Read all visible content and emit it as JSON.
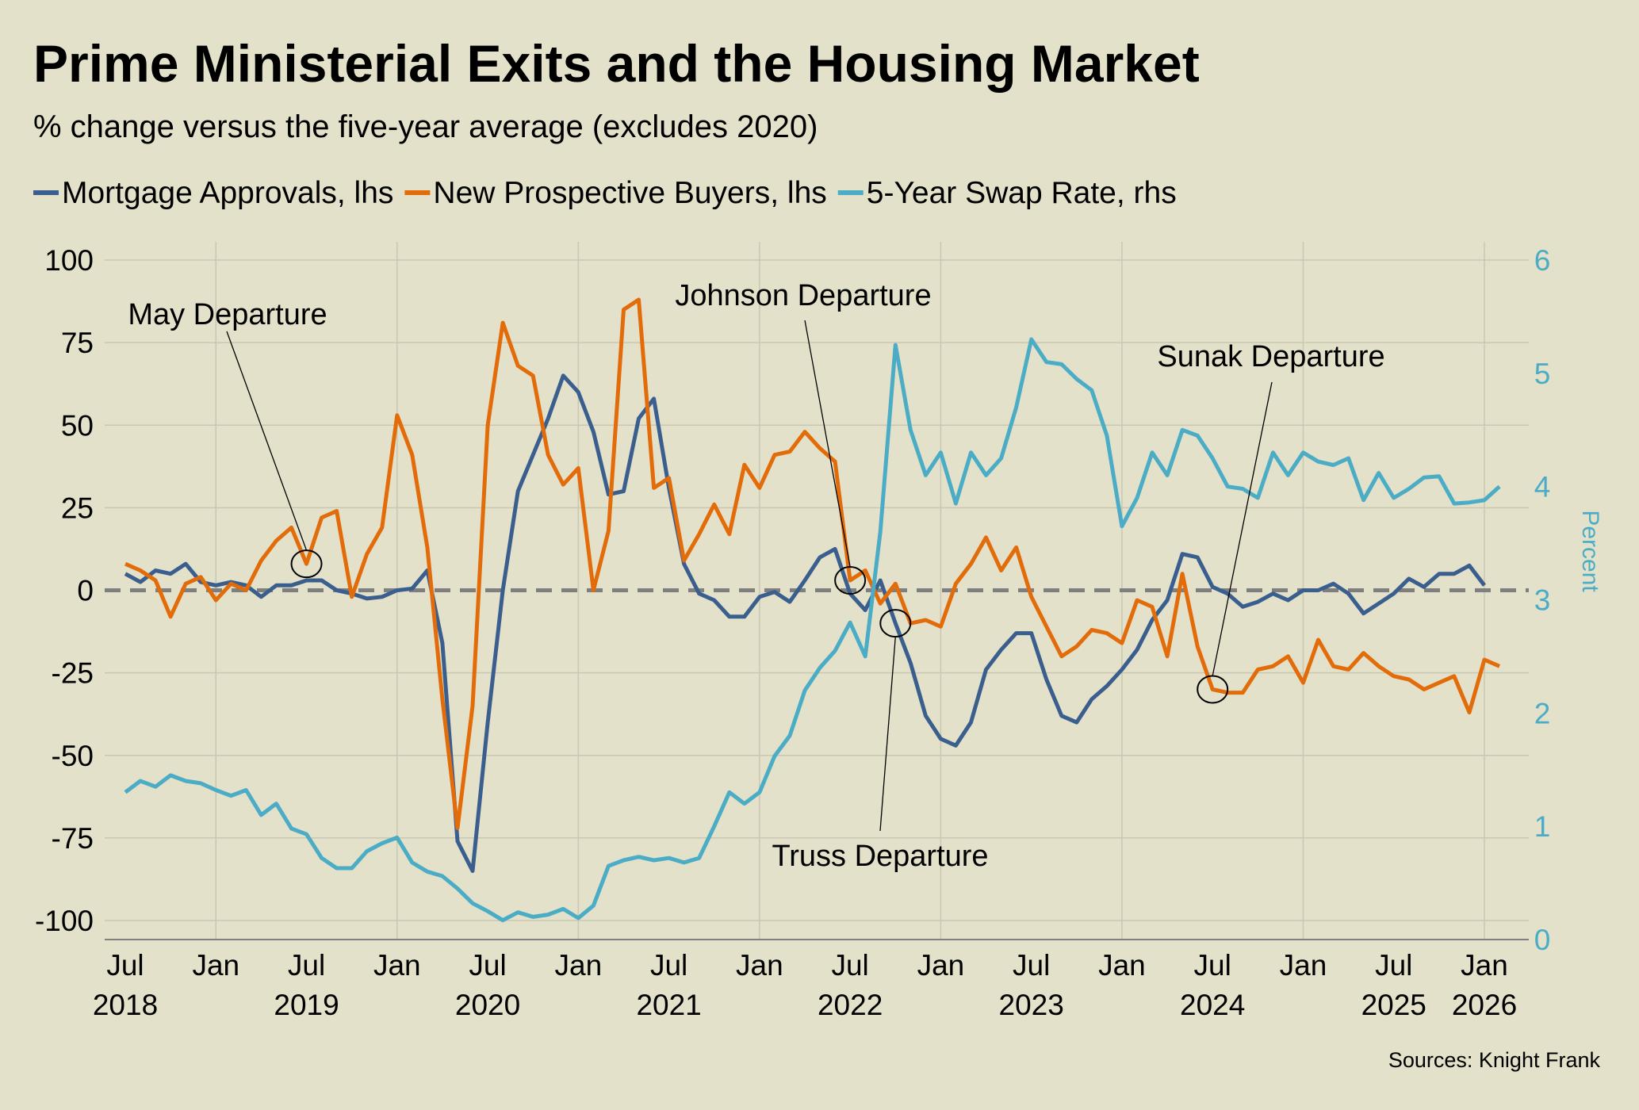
{
  "chart_data": {
    "type": "line",
    "title": "Prime Ministerial Exits and the Housing Market",
    "subtitle": "% change versus the five-year average (excludes 2020)",
    "y_left": {
      "range": [
        -100,
        100
      ],
      "ticks": [
        "100",
        "75",
        "50",
        "25",
        "0",
        "-25",
        "-50",
        "-75",
        "-100"
      ],
      "values": [
        100,
        75,
        50,
        25,
        0,
        -25,
        -50,
        -75,
        -100
      ]
    },
    "y_right": {
      "label": "Percent",
      "range": [
        0,
        6
      ],
      "ticks": [
        "6",
        "5",
        "4",
        "3",
        "2",
        "1",
        "0"
      ],
      "values": [
        6,
        5,
        4,
        3,
        2,
        1,
        0
      ]
    },
    "x_start": "2018-07",
    "x_ticks": [
      {
        "month": "2018-07",
        "line1": "Jul",
        "line2": "2018"
      },
      {
        "month": "2019-01",
        "line1": "Jan",
        "line2": ""
      },
      {
        "month": "2019-07",
        "line1": "Jul",
        "line2": "2019"
      },
      {
        "month": "2020-01",
        "line1": "Jan",
        "line2": ""
      },
      {
        "month": "2020-07",
        "line1": "Jul",
        "line2": "2020"
      },
      {
        "month": "2021-01",
        "line1": "Jan",
        "line2": ""
      },
      {
        "month": "2021-07",
        "line1": "Jul",
        "line2": "2021"
      },
      {
        "month": "2022-01",
        "line1": "Jan",
        "line2": ""
      },
      {
        "month": "2022-07",
        "line1": "Jul",
        "line2": "2022"
      },
      {
        "month": "2023-01",
        "line1": "Jan",
        "line2": ""
      },
      {
        "month": "2023-07",
        "line1": "Jul",
        "line2": "2023"
      },
      {
        "month": "2024-01",
        "line1": "Jan",
        "line2": ""
      },
      {
        "month": "2024-07",
        "line1": "Jul",
        "line2": "2024"
      },
      {
        "month": "2025-01",
        "line1": "Jan",
        "line2": ""
      },
      {
        "month": "2025-07",
        "line1": "Jul",
        "line2": "2025"
      },
      {
        "month": "2026-01",
        "line1": "Jan",
        "line2": "2026"
      }
    ],
    "grid": true,
    "zero_line": "dashed",
    "legend_placement": "top",
    "series": [
      {
        "name": "Mortgage Approvals, lhs",
        "axis": "left",
        "color": "#3a5f8f",
        "values": [
          5,
          2.5,
          6,
          5,
          8,
          2.5,
          1.5,
          2.5,
          1.5,
          -2,
          1.5,
          1.5,
          3,
          3,
          0,
          -1,
          -2.5,
          -2,
          0,
          0.5,
          6,
          -16,
          -76,
          -85,
          -40,
          0,
          30,
          41,
          52,
          65,
          60,
          48,
          29,
          30,
          52,
          58,
          31,
          8,
          -1,
          -3,
          -8,
          -8,
          -2,
          -0.5,
          -3.5,
          3,
          10,
          12.5,
          -1,
          -6,
          3,
          -10,
          -22,
          -38,
          -45,
          -47,
          -40,
          -24,
          -18,
          -13,
          -13,
          -27,
          -38,
          -40,
          -33,
          -29,
          -24,
          -18,
          -9,
          -3,
          11,
          10,
          1,
          -1,
          -5,
          -3.5,
          -1,
          -3,
          0,
          0,
          2,
          -1,
          -7,
          -4,
          -1,
          3.5,
          1,
          5,
          5,
          7.5,
          1.5
        ]
      },
      {
        "name": "New Prospective Buyers, lhs",
        "axis": "left",
        "color": "#e36c0a",
        "values": [
          8,
          6,
          3,
          -8,
          2,
          4,
          -3,
          2,
          0,
          9,
          15,
          19,
          8,
          22,
          24,
          -2,
          11,
          19,
          53,
          41,
          13,
          -33,
          -72,
          -35,
          50,
          81,
          68,
          65,
          41,
          32,
          37,
          0,
          18,
          85,
          88,
          31,
          34,
          9,
          17,
          26,
          17,
          38,
          31,
          41,
          42,
          48,
          43,
          39,
          3,
          6,
          -4,
          2,
          -10,
          -9,
          -11,
          2,
          8,
          16,
          6,
          13,
          -2,
          -11,
          -20,
          -17,
          -12,
          -13,
          -16,
          -3,
          -5,
          -20,
          5,
          -17,
          -30,
          -31,
          -31,
          -24,
          -23,
          -20,
          -28,
          -15,
          -23,
          -24,
          -19,
          -23,
          -26,
          -27,
          -30,
          -28,
          -26,
          -37,
          -21,
          -23
        ]
      },
      {
        "name": "5-Year Swap Rate, rhs",
        "axis": "right",
        "color": "#4bacc6",
        "values": [
          1.3,
          1.4,
          1.35,
          1.45,
          1.4,
          1.38,
          1.32,
          1.27,
          1.32,
          1.1,
          1.2,
          0.98,
          0.93,
          0.72,
          0.63,
          0.63,
          0.78,
          0.85,
          0.9,
          0.68,
          0.6,
          0.56,
          0.45,
          0.32,
          0.25,
          0.17,
          0.24,
          0.2,
          0.22,
          0.27,
          0.19,
          0.3,
          0.65,
          0.7,
          0.73,
          0.7,
          0.72,
          0.68,
          0.72,
          1.0,
          1.3,
          1.2,
          1.3,
          1.62,
          1.8,
          2.2,
          2.4,
          2.55,
          2.8,
          2.5,
          3.6,
          5.25,
          4.5,
          4.1,
          4.3,
          3.85,
          4.3,
          4.1,
          4.25,
          4.7,
          5.3,
          5.1,
          5.08,
          4.95,
          4.85,
          4.45,
          3.65,
          3.9,
          4.3,
          4.1,
          4.5,
          4.45,
          4.25,
          4.0,
          3.98,
          3.9,
          4.3,
          4.1,
          4.3,
          4.22,
          4.19,
          4.25,
          3.88,
          4.12,
          3.9,
          3.98,
          4.08,
          4.09,
          3.85,
          3.86,
          3.88,
          4.0
        ]
      }
    ],
    "annotations": [
      {
        "text": "May Departure",
        "series": 1,
        "month": "2019-07"
      },
      {
        "text": "Johnson Departure",
        "series": 1,
        "month": "2022-07"
      },
      {
        "text": "Truss Departure",
        "series": 0,
        "month": "2022-10"
      },
      {
        "text": "Sunak Departure",
        "series": 1,
        "month": "2024-07"
      }
    ],
    "source": "Sources: Knight Frank"
  }
}
